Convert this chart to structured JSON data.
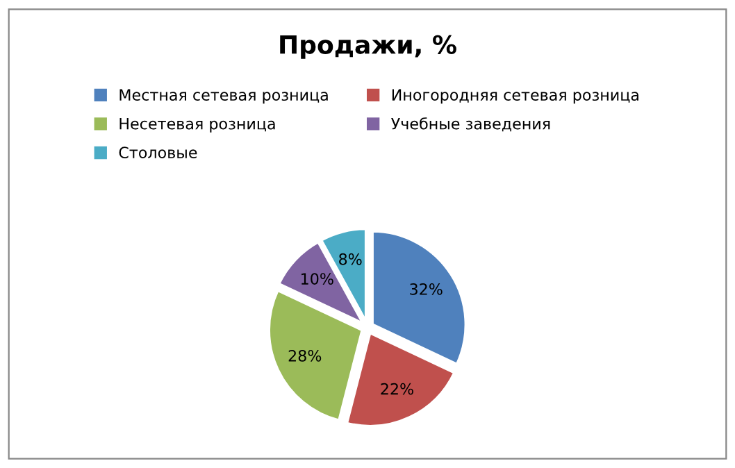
{
  "chart_data": {
    "type": "pie",
    "title": "Продажи, %",
    "categories": [
      "Местная сетевая розница",
      "Иногородняя сетевая розница",
      "Несетевая розница",
      "Учебные заведения",
      "Столовые"
    ],
    "values": [
      32,
      22,
      28,
      10,
      8
    ],
    "value_labels": [
      "32%",
      "22%",
      "28%",
      "10%",
      "8%"
    ],
    "colors": [
      "#4f81bd",
      "#c0504d",
      "#9bbb59",
      "#8064a2",
      "#4bacc6"
    ],
    "legend": "top"
  }
}
